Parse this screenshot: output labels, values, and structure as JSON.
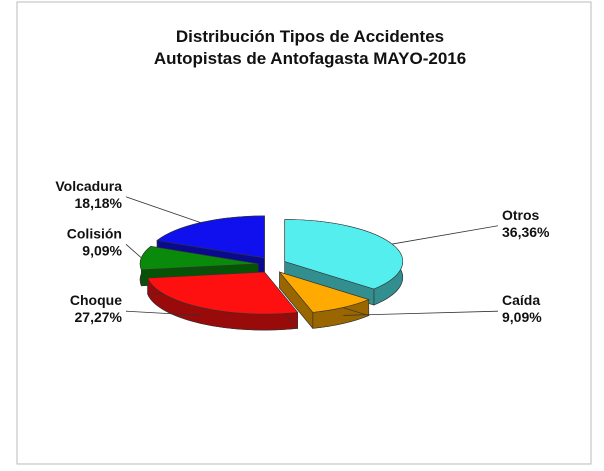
{
  "chart_data": {
    "type": "pie",
    "title": [
      "Distribución Tipos de Accidentes",
      "Autopistas de Antofagasta MAYO-2016"
    ],
    "categories": [
      "Otros",
      "Caída",
      "Choque",
      "Colisión",
      "Volcadura"
    ],
    "values": [
      36.36,
      9.09,
      27.27,
      9.09,
      18.18
    ],
    "value_labels": [
      "36,36%",
      "9,09%",
      "27,27%",
      "9,09%",
      "18,18%"
    ],
    "colors": [
      "#55eeee",
      "#ffaa00",
      "#ff1010",
      "#0a8a0a",
      "#1010ee"
    ]
  }
}
